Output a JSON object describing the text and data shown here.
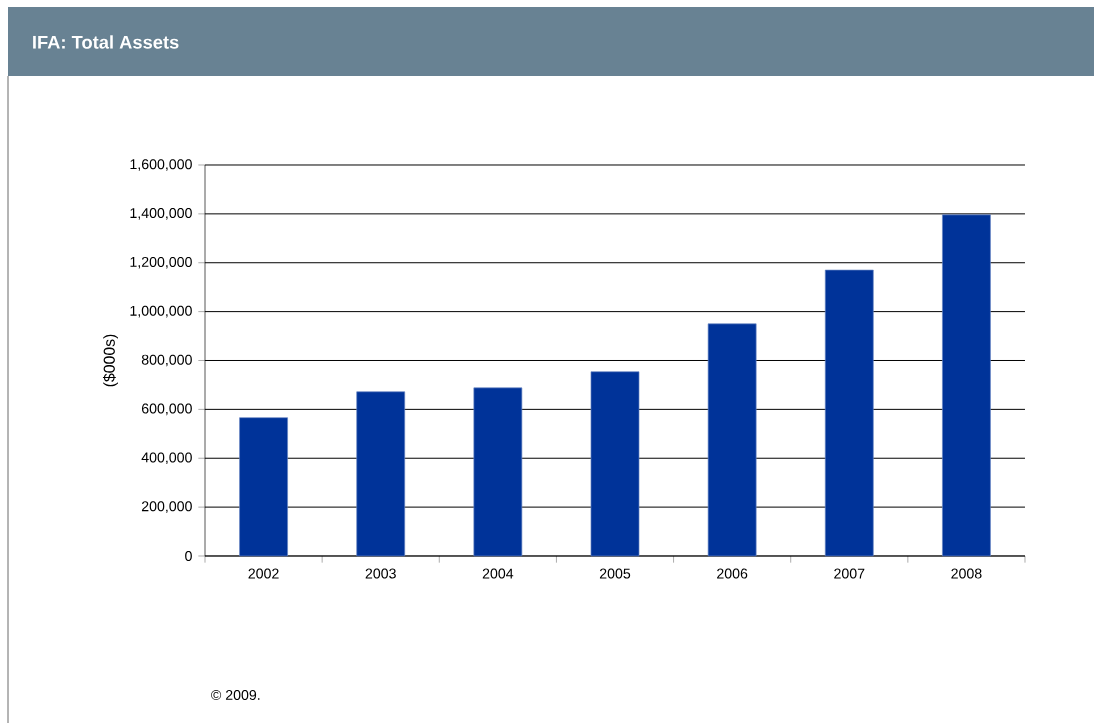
{
  "chart_data": {
    "type": "bar",
    "title": "IFA: Total Assets",
    "ylabel": "($000s)",
    "categories": [
      "2002",
      "2003",
      "2004",
      "2005",
      "2006",
      "2007",
      "2008"
    ],
    "values": [
      566000,
      672000,
      688000,
      754000,
      950000,
      1170000,
      1396000
    ],
    "color": "#003399",
    "ylim": [
      0,
      1600000
    ],
    "yticks": [
      0,
      {
        "value": 200000,
        "label": "200,000"
      },
      {
        "value": 400000,
        "label": "400,000"
      },
      {
        "value": 600000,
        "label": "600,000"
      },
      {
        "value": 800000,
        "label": "800,000"
      },
      {
        "value": 1000000,
        "label": "1,000,000"
      },
      {
        "value": 1200000,
        "label": "1,200,000"
      },
      {
        "value": 1400000,
        "label": "1,400,000"
      },
      {
        "value": 1600000,
        "label": "1,600,000"
      }
    ],
    "grid": "y",
    "annotations": [
      "© 2009."
    ]
  }
}
